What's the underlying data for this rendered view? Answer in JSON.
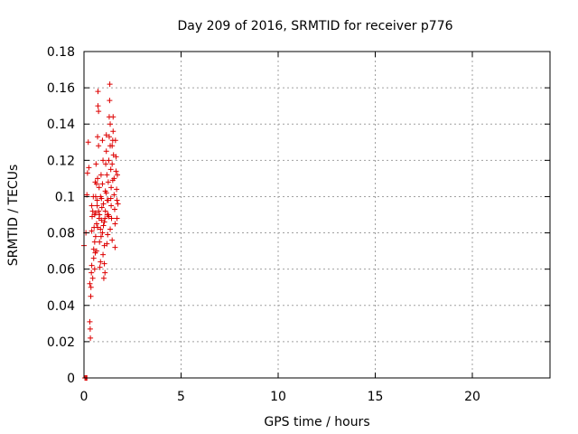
{
  "chart_data": {
    "type": "scatter",
    "title": "Day 209 of 2016, SRMTID for receiver p776",
    "xlabel": "GPS time / hours",
    "ylabel": "SRMTID / TECUs",
    "xlim": [
      0,
      24
    ],
    "ylim": [
      0,
      0.18
    ],
    "xticks": [
      0,
      5,
      10,
      15,
      20
    ],
    "yticks": [
      0,
      0.02,
      0.04,
      0.06,
      0.08,
      0.1,
      0.12,
      0.14,
      0.16,
      0.18
    ],
    "ytick_labels": [
      "0",
      "0.02",
      "0.04",
      "0.06",
      "0.08",
      "0.1",
      "0.12",
      "0.14",
      "0.16",
      "0.18"
    ],
    "grid": true,
    "marker": "+",
    "color": "#dd0000",
    "series": [
      {
        "name": "p776",
        "points": [
          [
            0.05,
            0.0
          ],
          [
            0.1,
            0.0
          ],
          [
            0.15,
            0.0
          ],
          [
            0.12,
            0.0
          ],
          [
            0.0,
            0.073
          ],
          [
            0.1,
            0.08
          ],
          [
            0.15,
            0.101
          ],
          [
            0.18,
            0.113
          ],
          [
            0.22,
            0.13
          ],
          [
            0.25,
            0.116
          ],
          [
            0.3,
            0.052
          ],
          [
            0.3,
            0.031
          ],
          [
            0.32,
            0.027
          ],
          [
            0.33,
            0.022
          ],
          [
            0.35,
            0.045
          ],
          [
            0.36,
            0.05
          ],
          [
            0.38,
            0.058
          ],
          [
            0.4,
            0.062
          ],
          [
            0.4,
            0.081
          ],
          [
            0.42,
            0.089
          ],
          [
            0.45,
            0.092
          ],
          [
            0.45,
            0.055
          ],
          [
            0.5,
            0.066
          ],
          [
            0.5,
            0.071
          ],
          [
            0.52,
            0.083
          ],
          [
            0.55,
            0.09
          ],
          [
            0.55,
            0.075
          ],
          [
            0.58,
            0.069
          ],
          [
            0.6,
            0.078
          ],
          [
            0.6,
            0.1
          ],
          [
            0.62,
            0.118
          ],
          [
            0.65,
            0.107
          ],
          [
            0.65,
            0.085
          ],
          [
            0.68,
            0.095
          ],
          [
            0.7,
            0.11
          ],
          [
            0.7,
            0.133
          ],
          [
            0.72,
            0.15
          ],
          [
            0.72,
            0.158
          ],
          [
            0.75,
            0.147
          ],
          [
            0.75,
            0.128
          ],
          [
            0.78,
            0.105
          ],
          [
            0.8,
            0.09
          ],
          [
            0.8,
            0.075
          ],
          [
            0.82,
            0.061
          ],
          [
            0.85,
            0.082
          ],
          [
            0.85,
            0.1
          ],
          [
            0.88,
            0.112
          ],
          [
            0.9,
            0.099
          ],
          [
            0.9,
            0.087
          ],
          [
            0.92,
            0.094
          ],
          [
            0.95,
            0.107
          ],
          [
            0.95,
            0.131
          ],
          [
            0.98,
            0.12
          ],
          [
            1.0,
            0.096
          ],
          [
            1.0,
            0.084
          ],
          [
            1.02,
            0.055
          ],
          [
            1.05,
            0.063
          ],
          [
            1.05,
            0.073
          ],
          [
            1.08,
            0.088
          ],
          [
            1.1,
            0.092
          ],
          [
            1.1,
            0.103
          ],
          [
            1.12,
            0.118
          ],
          [
            1.15,
            0.125
          ],
          [
            1.15,
            0.134
          ],
          [
            1.18,
            0.112
          ],
          [
            1.2,
            0.098
          ],
          [
            1.2,
            0.09
          ],
          [
            1.22,
            0.079
          ],
          [
            1.25,
            0.098
          ],
          [
            1.25,
            0.108
          ],
          [
            1.28,
            0.12
          ],
          [
            1.3,
            0.133
          ],
          [
            1.3,
            0.144
          ],
          [
            1.32,
            0.153
          ],
          [
            1.33,
            0.162
          ],
          [
            1.35,
            0.14
          ],
          [
            1.35,
            0.128
          ],
          [
            1.38,
            0.115
          ],
          [
            1.4,
            0.105
          ],
          [
            1.4,
            0.095
          ],
          [
            1.42,
            0.088
          ],
          [
            1.45,
            0.076
          ],
          [
            1.45,
            0.118
          ],
          [
            1.48,
            0.131
          ],
          [
            1.5,
            0.144
          ],
          [
            1.5,
            0.136
          ],
          [
            1.52,
            0.123
          ],
          [
            1.55,
            0.11
          ],
          [
            1.55,
            0.101
          ],
          [
            1.58,
            0.093
          ],
          [
            1.6,
            0.085
          ],
          [
            1.6,
            0.072
          ],
          [
            1.62,
            0.131
          ],
          [
            1.65,
            0.122
          ],
          [
            1.65,
            0.114
          ],
          [
            1.68,
            0.104
          ],
          [
            1.7,
            0.098
          ],
          [
            1.7,
            0.088
          ],
          [
            1.72,
            0.112
          ],
          [
            1.75,
            0.096
          ],
          [
            0.55,
            0.06
          ],
          [
            0.6,
            0.091
          ],
          [
            0.65,
            0.07
          ],
          [
            0.7,
            0.083
          ],
          [
            0.75,
            0.092
          ],
          [
            0.85,
            0.064
          ],
          [
            0.95,
            0.08
          ],
          [
            1.05,
            0.086
          ],
          [
            1.15,
            0.102
          ],
          [
            1.25,
            0.09
          ],
          [
            1.35,
            0.082
          ],
          [
            1.45,
            0.128
          ],
          [
            0.4,
            0.095
          ],
          [
            0.48,
            0.1
          ],
          [
            0.58,
            0.108
          ],
          [
            0.68,
            0.098
          ],
          [
            0.78,
            0.088
          ],
          [
            0.88,
            0.078
          ],
          [
            0.98,
            0.068
          ],
          [
            1.08,
            0.058
          ],
          [
            1.18,
            0.074
          ],
          [
            1.28,
            0.089
          ],
          [
            1.38,
            0.099
          ],
          [
            1.48,
            0.109
          ]
        ]
      }
    ]
  }
}
